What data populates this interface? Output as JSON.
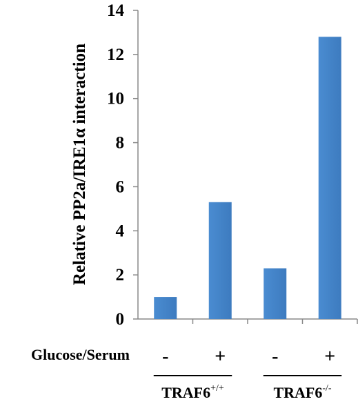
{
  "chart_data": {
    "type": "bar",
    "title": "",
    "ylabel": "Relative PP2a/IRE1α interaction",
    "ylim": [
      0,
      14
    ],
    "yticks": [
      0,
      2,
      4,
      6,
      8,
      10,
      12,
      14
    ],
    "row_label": "Glucose/Serum",
    "categories": [
      "-",
      "+",
      "-",
      "+"
    ],
    "values": [
      1.0,
      5.3,
      2.3,
      12.8
    ],
    "groups": [
      {
        "base": "TRAF6",
        "sup": "+/+",
        "span": [
          0,
          1
        ]
      },
      {
        "base": "TRAF6",
        "sup": "-/-",
        "span": [
          2,
          3
        ]
      }
    ],
    "bar_color": "#4A8CD1",
    "bar_color_dark": "#3D7BBF",
    "grid": false,
    "legend": "none"
  }
}
